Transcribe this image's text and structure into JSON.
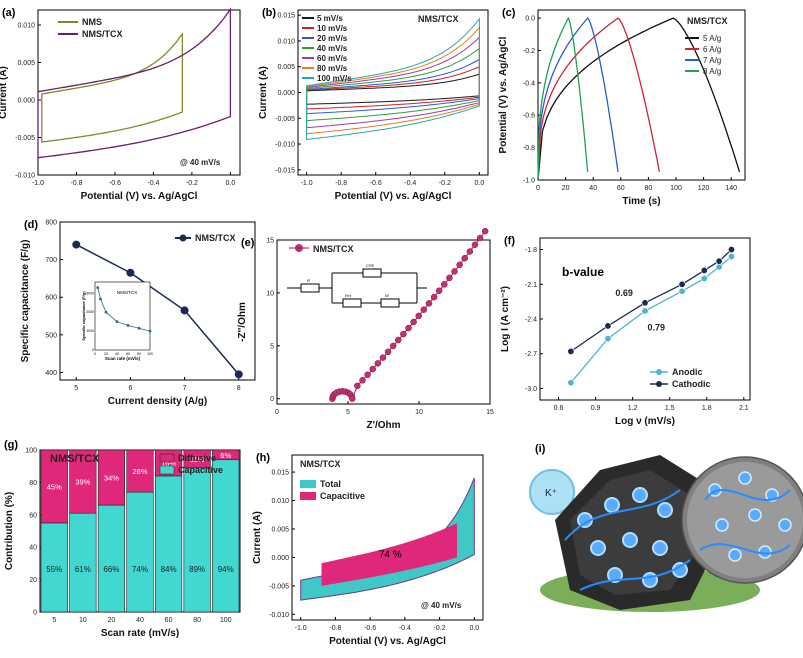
{
  "colors": {
    "navy": "#1a2a52",
    "teal": "#4fb3cf",
    "magenta": "#e0287a",
    "cyan": "#40d8d0",
    "olive": "#7f8a2c",
    "purple": "#6a1d6e",
    "orange": "#e86a2a",
    "pink": "#c23070"
  },
  "chart_data": [
    {
      "id": "a",
      "type": "line",
      "label": "(a)",
      "annotation": "@ 40 mV/s",
      "xlabel": "Potential (V) vs. Ag/AgCl",
      "ylabel": "Current (A)",
      "xlim": [
        -1.0,
        0.05
      ],
      "ylim": [
        -0.01,
        0.012
      ],
      "xticks": [
        "-1.0",
        "-0.8",
        "-0.6",
        "-0.4",
        "-0.2",
        "0.0"
      ],
      "yticks": [
        "-0.010",
        "-0.005",
        "0.000",
        "0.005",
        "0.010"
      ],
      "series": [
        {
          "name": "NMS",
          "color": "#7f8a2c"
        },
        {
          "name": "NMS/TCX",
          "color": "#6a1d6e"
        }
      ]
    },
    {
      "id": "b",
      "type": "line",
      "label": "(b)",
      "title": "NMS/TCX",
      "xlabel": "Potential (V) vs. Ag/AgCl",
      "ylabel": "Current (A)",
      "xlim": [
        -1.05,
        0.05
      ],
      "ylim": [
        -0.016,
        0.016
      ],
      "xticks": [
        "-1.0",
        "-0.8",
        "-0.6",
        "-0.4",
        "-0.2",
        "0.0"
      ],
      "yticks": [
        "-0.015",
        "-0.010",
        "-0.005",
        "0.000",
        "0.005",
        "0.010",
        "0.015"
      ],
      "series": [
        {
          "name": "5 mV/s",
          "color": "#1a1a1a",
          "scale": 0.25
        },
        {
          "name": "10 mV/s",
          "color": "#d02020",
          "scale": 0.35
        },
        {
          "name": "20 mV/s",
          "color": "#2a5ad0",
          "scale": 0.45
        },
        {
          "name": "40 mV/s",
          "color": "#30a030",
          "scale": 0.6
        },
        {
          "name": "60 mV/s",
          "color": "#9a3ab0",
          "scale": 0.75
        },
        {
          "name": "80 mV/s",
          "color": "#e08020",
          "scale": 0.88
        },
        {
          "name": "100 mV/s",
          "color": "#28a8a8",
          "scale": 1.0
        }
      ]
    },
    {
      "id": "c",
      "type": "line",
      "label": "(c)",
      "title": "NMS/TCX",
      "xlabel": "Time (s)",
      "ylabel": "Potential (V) vs. Ag/AgCl",
      "xlim": [
        0,
        150
      ],
      "ylim": [
        -1.0,
        0.05
      ],
      "xticks": [
        "0",
        "20",
        "40",
        "60",
        "80",
        "100",
        "120",
        "140"
      ],
      "yticks": [
        "-1.0",
        "-0.8",
        "-0.6",
        "-0.4",
        "-0.2",
        "0.0"
      ],
      "series": [
        {
          "name": "5 A/g",
          "color": "#111111",
          "t": [
            0,
            98,
            146
          ]
        },
        {
          "name": "6 A/g",
          "color": "#d0203a",
          "t": [
            0,
            58,
            88
          ]
        },
        {
          "name": "7 A/g",
          "color": "#2a5ad0",
          "t": [
            0,
            36,
            58
          ]
        },
        {
          "name": "8 A/g",
          "color": "#20a050",
          "t": [
            0,
            22,
            36
          ]
        }
      ]
    },
    {
      "id": "d",
      "type": "line",
      "label": "(d)",
      "xlabel": "Current density (A/g)",
      "ylabel": "Specific capacitance (F/g)",
      "xlim": [
        4.7,
        8.3
      ],
      "ylim": [
        380,
        800
      ],
      "xticks": [
        "5",
        "6",
        "7",
        "8"
      ],
      "yticks": [
        "400",
        "500",
        "600",
        "700",
        "800"
      ],
      "series": [
        {
          "name": "NMS/TCX",
          "x": [
            5,
            6,
            7,
            8
          ],
          "y": [
            740,
            665,
            565,
            395
          ]
        }
      ],
      "inset": {
        "name": "NMS/TCX",
        "xlabel": "Scan rate (mV/s)",
        "ylabel": "Specific capacitance (F/g)",
        "xticks": [
          "0",
          "20",
          "40",
          "60",
          "80",
          "100"
        ],
        "yticks": [
          "0",
          "1000",
          "2000",
          "3000"
        ],
        "x": [
          5,
          10,
          20,
          40,
          60,
          80,
          100
        ],
        "y": [
          3300,
          2700,
          2000,
          1500,
          1300,
          1150,
          1000
        ],
        "ylim": [
          0,
          3600
        ]
      }
    },
    {
      "id": "e",
      "type": "scatter",
      "label": "(e)",
      "xlabel": "Z'/Ohm",
      "ylabel": "-Z''/Ohm",
      "xlim": [
        0,
        15
      ],
      "ylim": [
        -0.5,
        15
      ],
      "xticks": [
        "0",
        "5",
        "10",
        "15"
      ],
      "yticks": [
        "0",
        "5",
        "10",
        "15"
      ],
      "series": [
        {
          "name": "NMS/TCX"
        }
      ],
      "circuit": {
        "r": "R",
        "cpe": "CPE",
        "rct": "Rct",
        "w": "W"
      }
    },
    {
      "id": "f",
      "type": "line",
      "label": "(f)",
      "title": "b-value",
      "xlabel": "Log ν (mV/s)",
      "ylabel": "Log I (A cm⁻²)",
      "xlim": [
        0.45,
        2.15
      ],
      "ylim": [
        -3.1,
        -1.7
      ],
      "xticks": [
        "0.6",
        "0.9",
        "1.2",
        "1.5",
        "1.8",
        "2.1"
      ],
      "yticks": [
        "-3.0",
        "-2.7",
        "-2.4",
        "-2.1",
        "-1.8"
      ],
      "annotations": [
        "0.69",
        "0.79"
      ],
      "series": [
        {
          "name": "Anodic",
          "color": "#4fb3cf",
          "x": [
            0.7,
            1.0,
            1.3,
            1.6,
            1.78,
            1.9,
            2.0
          ],
          "y": [
            -2.95,
            -2.57,
            -2.33,
            -2.16,
            -2.05,
            -1.95,
            -1.86
          ]
        },
        {
          "name": "Cathodic",
          "color": "#1a2a52",
          "x": [
            0.7,
            1.0,
            1.3,
            1.6,
            1.78,
            1.9,
            2.0
          ],
          "y": [
            -2.68,
            -2.46,
            -2.26,
            -2.1,
            -1.98,
            -1.9,
            -1.8
          ]
        }
      ]
    },
    {
      "id": "g",
      "type": "bar",
      "label": "(g)",
      "title": "NMS/TCX",
      "xlabel": "Scan rate (mV/s)",
      "ylabel": "Contribution (%)",
      "categories": [
        "5",
        "10",
        "20",
        "40",
        "60",
        "80",
        "100"
      ],
      "ylim": [
        0,
        100
      ],
      "yticks": [
        "0",
        "20",
        "40",
        "60",
        "80",
        "100"
      ],
      "series": [
        {
          "name": "Capacitive",
          "color": "#40d8d0",
          "values": [
            55,
            61,
            66,
            74,
            84,
            89,
            94
          ],
          "labels": [
            "55%",
            "61%",
            "66%",
            "74%",
            "84%",
            "89%",
            "94%"
          ]
        },
        {
          "name": "Diffusive",
          "color": "#e0287a",
          "values": [
            45,
            39,
            34,
            26,
            16,
            11,
            6
          ],
          "labels": [
            "45%",
            "39%",
            "34%",
            "26%",
            "16%",
            "11%",
            "6%"
          ]
        }
      ]
    },
    {
      "id": "h",
      "type": "area",
      "label": "(h)",
      "title": "NMS/TCX",
      "annotation": "@ 40 mV/s",
      "center_label": "74 %",
      "xlabel": "Potential (V) vs. Ag/AgCl",
      "ylabel": "Current (A)",
      "xlim": [
        -1.05,
        0.05
      ],
      "ylim": [
        -0.011,
        0.018
      ],
      "xticks": [
        "-1.0",
        "-0.8",
        "-0.6",
        "-0.4",
        "-0.2",
        "0.0"
      ],
      "yticks": [
        "-0.010",
        "-0.005",
        "0.000",
        "0.005",
        "0.010",
        "0.015"
      ],
      "series": [
        {
          "name": "Total",
          "color": "#40c8c8"
        },
        {
          "name": "Capacitive",
          "color": "#e0287a"
        }
      ]
    }
  ],
  "panel_i": {
    "label": "(i)",
    "ion": "K⁺"
  }
}
